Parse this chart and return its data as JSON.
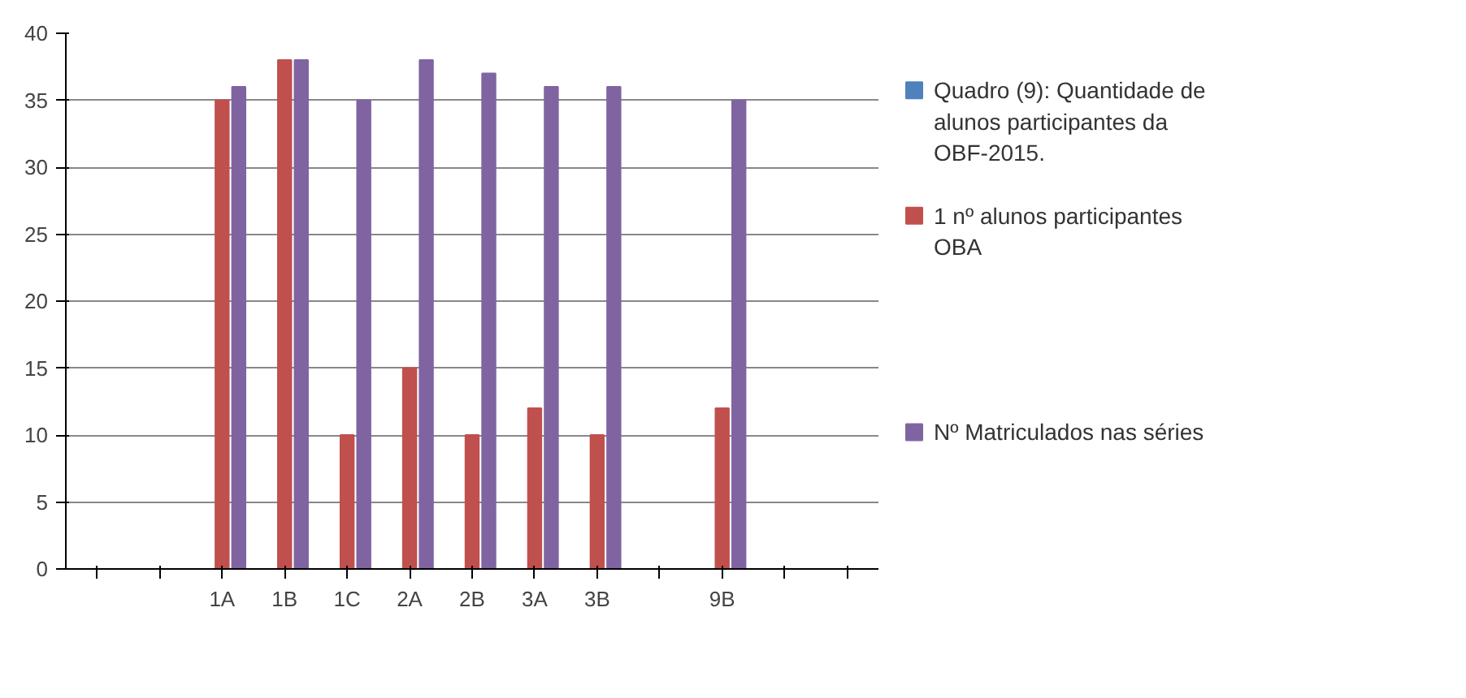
{
  "chart_data": {
    "type": "bar",
    "categories": [
      null,
      null,
      "1A",
      "1B",
      "1C",
      "2A",
      "2B",
      "3A",
      "3B",
      null,
      "9B",
      null,
      null
    ],
    "series": [
      {
        "name": "Quadro (9): Quantidade de alunos participantes da OBF-2015.",
        "color": "#4f81bd",
        "values": [
          0,
          0,
          0,
          0,
          0,
          0,
          0,
          0,
          0,
          0,
          0,
          0,
          0
        ]
      },
      {
        "name": "1 nº alunos participantes OBA",
        "color": "#c0504d",
        "values": [
          0,
          0,
          35,
          38,
          10,
          15,
          10,
          12,
          10,
          0,
          12,
          0,
          0
        ]
      },
      {
        "name": "Nº Matriculados nas séries",
        "color": "#8064a2",
        "values": [
          0,
          0,
          36,
          38,
          35,
          38,
          37,
          36,
          36,
          0,
          35,
          0,
          0
        ]
      }
    ],
    "ylim": [
      0,
      40
    ],
    "yticks": [
      0,
      5,
      10,
      15,
      20,
      25,
      30,
      35,
      40
    ],
    "grid": "y",
    "legend": "right"
  }
}
